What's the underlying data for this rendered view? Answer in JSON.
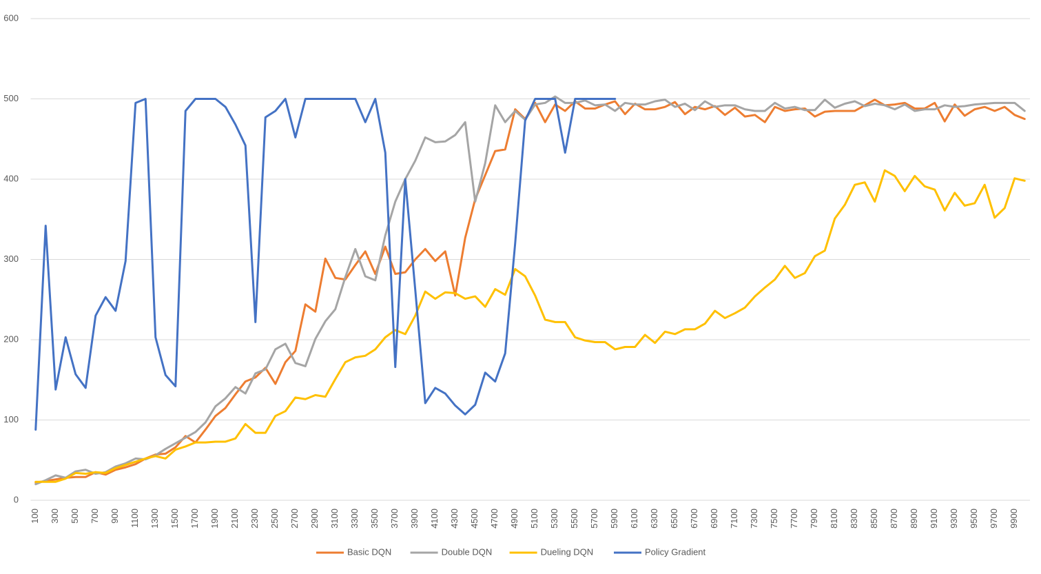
{
  "chart_data": {
    "type": "line",
    "categories": [
      100,
      null,
      300,
      null,
      500,
      null,
      700,
      null,
      900,
      null,
      1100,
      null,
      1300,
      null,
      1500,
      null,
      1700,
      null,
      1900,
      null,
      2100,
      null,
      2300,
      null,
      2500,
      null,
      2700,
      null,
      2900,
      null,
      3100,
      null,
      3300,
      null,
      3500,
      null,
      3700,
      null,
      3900,
      null,
      4100,
      null,
      4300,
      null,
      4500,
      null,
      4700,
      null,
      4900,
      null,
      5100,
      null,
      5300,
      null,
      5500,
      null,
      5700,
      null,
      5900,
      null,
      6100,
      null,
      6300,
      null,
      6500,
      null,
      6700,
      null,
      6900,
      null,
      7100,
      null,
      7300,
      null,
      7500,
      null,
      7700,
      null,
      7900,
      null,
      8100,
      null,
      8300,
      null,
      8500,
      null,
      8700,
      null,
      8900,
      null,
      9100,
      null,
      9300,
      null,
      9500,
      null,
      9700,
      null,
      9900,
      null
    ],
    "ylim": [
      0,
      600
    ],
    "yticks": [
      0,
      100,
      200,
      300,
      400,
      500,
      600
    ],
    "grid": true,
    "legend": "bottom",
    "series": [
      {
        "name": "Basic DQN",
        "color": "#ED7D31",
        "values": [
          22,
          24,
          26,
          28,
          29,
          29,
          35,
          32,
          38,
          41,
          45,
          52,
          57,
          58,
          66,
          80,
          72,
          88,
          105,
          115,
          132,
          148,
          153,
          165,
          145,
          172,
          186,
          244,
          235,
          301,
          277,
          275,
          293,
          310,
          282,
          316,
          282,
          284,
          300,
          313,
          298,
          310,
          255,
          327,
          375,
          405,
          435,
          437,
          487,
          475,
          495,
          471,
          493,
          485,
          497,
          488,
          488,
          493,
          497,
          481,
          494,
          487,
          487,
          490,
          496,
          481,
          490,
          487,
          491,
          480,
          489,
          478,
          480,
          471,
          490,
          485,
          487,
          488,
          478,
          484,
          485,
          485,
          485,
          492,
          499,
          492,
          493,
          495,
          488,
          488,
          495,
          472,
          493,
          479,
          487,
          490,
          485,
          490,
          480,
          475
        ]
      },
      {
        "name": "Double DQN",
        "color": "#A5A5A5",
        "values": [
          20,
          25,
          31,
          28,
          36,
          38,
          33,
          35,
          42,
          46,
          52,
          51,
          56,
          64,
          71,
          78,
          85,
          97,
          117,
          127,
          141,
          133,
          158,
          163,
          188,
          195,
          171,
          167,
          201,
          223,
          238,
          278,
          313,
          279,
          274,
          330,
          372,
          400,
          423,
          452,
          446,
          447,
          455,
          471,
          372,
          420,
          492,
          471,
          485,
          474,
          493,
          495,
          503,
          495,
          495,
          498,
          492,
          493,
          485,
          495,
          493,
          493,
          497,
          499,
          490,
          494,
          486,
          497,
          490,
          492,
          492,
          487,
          485,
          485,
          495,
          488,
          490,
          486,
          486,
          499,
          489,
          494,
          497,
          491,
          494,
          492,
          487,
          493,
          485,
          487,
          487,
          492,
          490,
          491,
          493,
          494,
          495,
          495,
          495,
          485
        ]
      },
      {
        "name": "Dueling DQN",
        "color": "#FFC000",
        "values": [
          23,
          23,
          23,
          27,
          34,
          33,
          35,
          34,
          40,
          44,
          48,
          52,
          55,
          52,
          63,
          67,
          72,
          72,
          73,
          73,
          77,
          95,
          84,
          84,
          105,
          111,
          128,
          126,
          131,
          129,
          151,
          172,
          178,
          180,
          188,
          203,
          212,
          207,
          230,
          260,
          251,
          259,
          258,
          251,
          254,
          241,
          263,
          256,
          288,
          279,
          255,
          225,
          222,
          222,
          203,
          199,
          197,
          197,
          188,
          191,
          191,
          206,
          196,
          210,
          207,
          213,
          213,
          220,
          236,
          227,
          233,
          240,
          254,
          265,
          275,
          292,
          277,
          283,
          304,
          311,
          351,
          368,
          393,
          396,
          372,
          411,
          404,
          385,
          404,
          391,
          387,
          361,
          383,
          367,
          370,
          393,
          352,
          364,
          401,
          398
        ]
      },
      {
        "name": "Policy Gradient",
        "color": "#4472C4",
        "values": [
          88,
          342,
          138,
          203,
          157,
          140,
          230,
          253,
          236,
          298,
          495,
          500,
          203,
          156,
          142,
          485,
          500,
          500,
          500,
          490,
          468,
          442,
          222,
          477,
          485,
          500,
          452,
          500,
          500,
          500,
          500,
          500,
          500,
          471,
          500,
          433,
          166,
          400,
          262,
          121,
          140,
          133,
          118,
          107,
          119,
          159,
          148,
          183,
          320,
          473,
          500,
          500,
          500,
          433,
          500,
          500,
          500,
          500,
          500,
          null,
          null,
          null,
          null,
          null,
          null,
          null,
          null,
          null,
          null,
          null,
          null,
          null,
          null,
          null,
          null,
          null,
          null,
          null,
          null,
          null,
          null,
          null,
          null,
          null,
          null,
          null,
          null,
          null,
          null,
          null,
          null,
          null,
          null,
          null,
          null,
          null,
          null,
          null,
          null,
          null
        ]
      }
    ]
  }
}
